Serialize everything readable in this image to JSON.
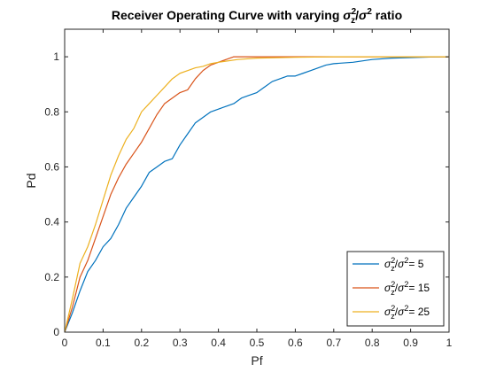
{
  "chart_data": {
    "type": "line",
    "title_parts": {
      "prefix": "Receiver Operating Curve with varying ",
      "sigma": "σ",
      "sub_z": "z",
      "sup_2": "2",
      "slash": "/",
      "suffix": " ratio"
    },
    "xlabel": "Pf",
    "ylabel": "Pd",
    "xlim": [
      0,
      1
    ],
    "ylim": [
      0,
      1.1
    ],
    "xticks": [
      0,
      0.1,
      0.2,
      0.3,
      0.4,
      0.5,
      0.6,
      0.7,
      0.8,
      0.9,
      1
    ],
    "xtick_labels": [
      "0",
      "0.1",
      "0.2",
      "0.3",
      "0.4",
      "0.5",
      "0.6",
      "0.7",
      "0.8",
      "0.9",
      "1"
    ],
    "yticks": [
      0,
      0.2,
      0.4,
      0.6,
      0.8,
      1
    ],
    "ytick_labels": [
      "0",
      "0.2",
      "0.4",
      "0.6",
      "0.8",
      "1"
    ],
    "grid": false,
    "legend_position": "bottom-right",
    "series": [
      {
        "name": "σz²/σ² = 5",
        "legend_value": "5",
        "color": "#0072BD",
        "points": [
          [
            0,
            0
          ],
          [
            0.02,
            0.07
          ],
          [
            0.04,
            0.15
          ],
          [
            0.06,
            0.22
          ],
          [
            0.08,
            0.26
          ],
          [
            0.1,
            0.31
          ],
          [
            0.12,
            0.34
          ],
          [
            0.14,
            0.39
          ],
          [
            0.16,
            0.45
          ],
          [
            0.18,
            0.49
          ],
          [
            0.2,
            0.53
          ],
          [
            0.22,
            0.58
          ],
          [
            0.24,
            0.6
          ],
          [
            0.26,
            0.62
          ],
          [
            0.28,
            0.63
          ],
          [
            0.3,
            0.68
          ],
          [
            0.32,
            0.72
          ],
          [
            0.34,
            0.76
          ],
          [
            0.36,
            0.78
          ],
          [
            0.38,
            0.8
          ],
          [
            0.4,
            0.81
          ],
          [
            0.42,
            0.82
          ],
          [
            0.44,
            0.83
          ],
          [
            0.46,
            0.85
          ],
          [
            0.48,
            0.86
          ],
          [
            0.5,
            0.87
          ],
          [
            0.52,
            0.89
          ],
          [
            0.54,
            0.91
          ],
          [
            0.56,
            0.92
          ],
          [
            0.58,
            0.93
          ],
          [
            0.6,
            0.93
          ],
          [
            0.62,
            0.94
          ],
          [
            0.64,
            0.95
          ],
          [
            0.66,
            0.96
          ],
          [
            0.68,
            0.97
          ],
          [
            0.7,
            0.975
          ],
          [
            0.75,
            0.98
          ],
          [
            0.8,
            0.99
          ],
          [
            0.85,
            0.995
          ],
          [
            0.9,
            0.997
          ],
          [
            0.95,
            0.999
          ],
          [
            1,
            1
          ]
        ]
      },
      {
        "name": "σz²/σ² = 15",
        "legend_value": "15",
        "color": "#D95319",
        "points": [
          [
            0,
            0
          ],
          [
            0.02,
            0.09
          ],
          [
            0.04,
            0.2
          ],
          [
            0.06,
            0.26
          ],
          [
            0.08,
            0.34
          ],
          [
            0.1,
            0.42
          ],
          [
            0.12,
            0.5
          ],
          [
            0.14,
            0.56
          ],
          [
            0.16,
            0.61
          ],
          [
            0.18,
            0.65
          ],
          [
            0.2,
            0.69
          ],
          [
            0.22,
            0.74
          ],
          [
            0.24,
            0.79
          ],
          [
            0.26,
            0.83
          ],
          [
            0.28,
            0.85
          ],
          [
            0.3,
            0.87
          ],
          [
            0.32,
            0.88
          ],
          [
            0.34,
            0.92
          ],
          [
            0.36,
            0.95
          ],
          [
            0.38,
            0.97
          ],
          [
            0.4,
            0.98
          ],
          [
            0.42,
            0.99
          ],
          [
            0.44,
            1
          ],
          [
            0.5,
            1
          ],
          [
            0.6,
            1
          ],
          [
            0.7,
            1
          ],
          [
            0.8,
            1
          ],
          [
            0.9,
            1
          ],
          [
            1,
            1
          ]
        ]
      },
      {
        "name": "σz²/σ² = 25",
        "legend_value": "25",
        "color": "#EDB120",
        "points": [
          [
            0,
            0
          ],
          [
            0.02,
            0.12
          ],
          [
            0.04,
            0.25
          ],
          [
            0.06,
            0.31
          ],
          [
            0.08,
            0.39
          ],
          [
            0.1,
            0.48
          ],
          [
            0.12,
            0.57
          ],
          [
            0.14,
            0.64
          ],
          [
            0.16,
            0.7
          ],
          [
            0.18,
            0.74
          ],
          [
            0.2,
            0.8
          ],
          [
            0.22,
            0.83
          ],
          [
            0.24,
            0.86
          ],
          [
            0.26,
            0.89
          ],
          [
            0.28,
            0.92
          ],
          [
            0.3,
            0.94
          ],
          [
            0.32,
            0.95
          ],
          [
            0.34,
            0.96
          ],
          [
            0.36,
            0.965
          ],
          [
            0.38,
            0.975
          ],
          [
            0.4,
            0.98
          ],
          [
            0.45,
            0.99
          ],
          [
            0.5,
            0.995
          ],
          [
            0.6,
            0.998
          ],
          [
            0.7,
            1
          ],
          [
            0.8,
            1
          ],
          [
            0.9,
            1
          ],
          [
            1,
            1
          ]
        ]
      }
    ]
  }
}
